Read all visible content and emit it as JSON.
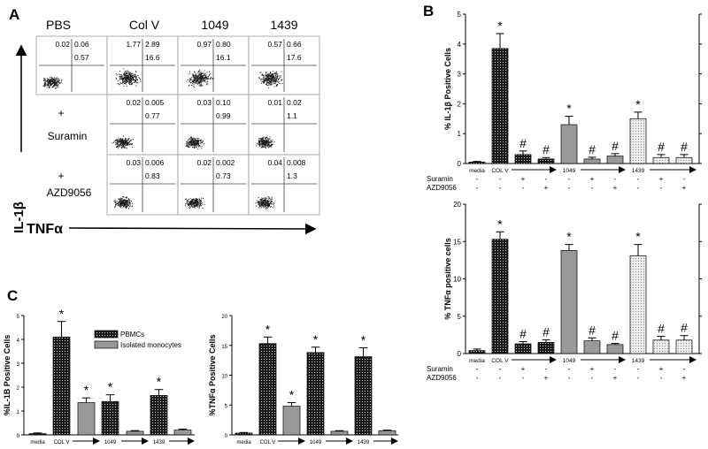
{
  "panels": {
    "A": {
      "label": "A",
      "columns": [
        "PBS",
        "Col V",
        "1049",
        "1439"
      ],
      "rows": [
        {
          "label": "",
          "label_prefix": "",
          "cells": [
            {
              "q": [
                "0.02",
                "0.06",
                "0.57"
              ]
            },
            {
              "q": [
                "1.77",
                "2.89",
                "16.6"
              ]
            },
            {
              "q": [
                "0.97",
                "0.80",
                "16.1"
              ]
            },
            {
              "q": [
                "0.57",
                "0.66",
                "17.6"
              ]
            }
          ]
        },
        {
          "label": "Suramin",
          "label_prefix": "+",
          "cells": [
            null,
            {
              "q": [
                "0.02",
                "0.005",
                "0.77"
              ]
            },
            {
              "q": [
                "0.03",
                "0.10",
                "0.99"
              ]
            },
            {
              "q": [
                "0.01",
                "0.02",
                "1.1"
              ]
            }
          ]
        },
        {
          "label": "AZD9056",
          "label_prefix": "+",
          "cells": [
            null,
            {
              "q": [
                "0.03",
                "0.006",
                "0.83"
              ]
            },
            {
              "q": [
                "0.02",
                "0.002",
                "0.73"
              ]
            },
            {
              "q": [
                "0.04",
                "0.008",
                "1.3"
              ]
            }
          ]
        }
      ],
      "y_axis_label": "IL-1β",
      "x_axis_label": "TNFα"
    },
    "B": {
      "label": "B"
    },
    "C": {
      "label": "C"
    }
  },
  "chart_data": [
    {
      "id": "B1",
      "type": "bar",
      "ylabel": "% IL-1β Positive Cells",
      "ylim": [
        0,
        5
      ],
      "yticks": [
        0,
        1,
        2,
        3,
        4,
        5
      ],
      "categories": [
        "media",
        "COL V",
        "COL V + Suramin",
        "COL V + AZD9056",
        "1049",
        "1049 + Suramin",
        "1049 + AZD9056",
        "1439",
        "1439 + Suramin",
        "1439 + AZD9056"
      ],
      "values": [
        0.05,
        3.85,
        0.3,
        0.15,
        1.3,
        0.15,
        0.25,
        1.5,
        0.2,
        0.2
      ],
      "errors": [
        0.02,
        0.5,
        0.12,
        0.05,
        0.28,
        0.06,
        0.08,
        0.22,
        0.1,
        0.1
      ],
      "markers": [
        "",
        "*",
        "#",
        "#",
        "*",
        "#",
        "#",
        "*",
        "#",
        "#"
      ],
      "x_labels": [
        "media",
        "COL V",
        "",
        "",
        "1049",
        "",
        "",
        "1439",
        "",
        ""
      ],
      "treatment_rows": [
        {
          "label": "Suramin",
          "signs": [
            "-",
            "-",
            "+",
            "-",
            "-",
            "+",
            "-",
            "-",
            "+",
            "-"
          ]
        },
        {
          "label": "AZD9056",
          "signs": [
            "-",
            "-",
            "-",
            "+",
            "-",
            "-",
            "+",
            "-",
            "-",
            "+"
          ]
        }
      ]
    },
    {
      "id": "B2",
      "type": "bar",
      "ylabel": "% TNFα positive cells",
      "ylim": [
        0,
        20
      ],
      "yticks": [
        0,
        5,
        10,
        15,
        20
      ],
      "categories": [
        "media",
        "COL V",
        "COL V + Suramin",
        "COL V + AZD9056",
        "1049",
        "1049 + Suramin",
        "1049 + AZD9056",
        "1439",
        "1439 + Suramin",
        "1439 + AZD9056"
      ],
      "values": [
        0.4,
        15.3,
        1.3,
        1.5,
        13.8,
        1.7,
        1.2,
        13.1,
        1.8,
        1.8
      ],
      "errors": [
        0.2,
        1.0,
        0.3,
        0.35,
        0.8,
        0.4,
        0.15,
        1.5,
        0.5,
        0.6
      ],
      "markers": [
        "",
        "*",
        "#",
        "#",
        "*",
        "#",
        "#",
        "*",
        "#",
        "#"
      ],
      "x_labels": [
        "media",
        "COL V",
        "",
        "",
        "1049",
        "",
        "",
        "1439",
        "",
        ""
      ],
      "treatment_rows": [
        {
          "label": "Suramin",
          "signs": [
            "-",
            "-",
            "+",
            "-",
            "-",
            "+",
            "-",
            "-",
            "+",
            "-"
          ]
        },
        {
          "label": "AZD9056",
          "signs": [
            "-",
            "-",
            "-",
            "+",
            "-",
            "-",
            "+",
            "-",
            "-",
            "+"
          ]
        }
      ]
    },
    {
      "id": "C1",
      "type": "bar",
      "ylabel": "%IL-1B Positive Cells",
      "ylim": [
        0,
        5
      ],
      "yticks": [
        0,
        1,
        2,
        3,
        4,
        5
      ],
      "categories": [
        "media",
        "COL V",
        "COL V (monocytes)",
        "1049",
        "1049 (monocytes)",
        "1439",
        "1439 (monocytes)"
      ],
      "values": [
        0.05,
        4.1,
        1.35,
        1.4,
        0.15,
        1.65,
        0.2
      ],
      "errors": [
        0.03,
        0.65,
        0.2,
        0.28,
        0.03,
        0.25,
        0.04
      ],
      "groups": [
        "PBMCs",
        "PBMCs",
        "Isolated monocytes",
        "PBMCs",
        "Isolated monocytes",
        "PBMCs",
        "Isolated monocytes"
      ],
      "markers": [
        "",
        "*",
        "*",
        "*",
        "",
        "*",
        ""
      ],
      "x_labels": [
        "media",
        "COL V",
        "",
        "1049",
        "",
        "1439",
        ""
      ],
      "legend": {
        "position": "top-right",
        "entries": [
          "PBMCs",
          "Isolated monocytes"
        ]
      }
    },
    {
      "id": "C2",
      "type": "bar",
      "ylabel": "%TNFα Positive Cells",
      "ylim": [
        0,
        20
      ],
      "yticks": [
        0,
        5,
        10,
        15,
        20
      ],
      "categories": [
        "media",
        "COL V",
        "COL V (monocytes)",
        "1049",
        "1049 (monocytes)",
        "1439",
        "1439 (monocytes)"
      ],
      "values": [
        0.3,
        15.3,
        4.8,
        13.8,
        0.6,
        13.1,
        0.7
      ],
      "errors": [
        0.1,
        1.1,
        0.6,
        0.9,
        0.1,
        1.5,
        0.1
      ],
      "groups": [
        "PBMCs",
        "PBMCs",
        "Isolated monocytes",
        "PBMCs",
        "Isolated monocytes",
        "PBMCs",
        "Isolated monocytes"
      ],
      "markers": [
        "",
        "*",
        "*",
        "*",
        "",
        "*",
        ""
      ],
      "x_labels": [
        "media",
        "COL V",
        "",
        "1049",
        "",
        "1439",
        ""
      ]
    }
  ],
  "colors": {
    "dots": "#1a1a1a",
    "gray": "#999999",
    "light": "#dcdcdc",
    "axis": "#000000"
  }
}
